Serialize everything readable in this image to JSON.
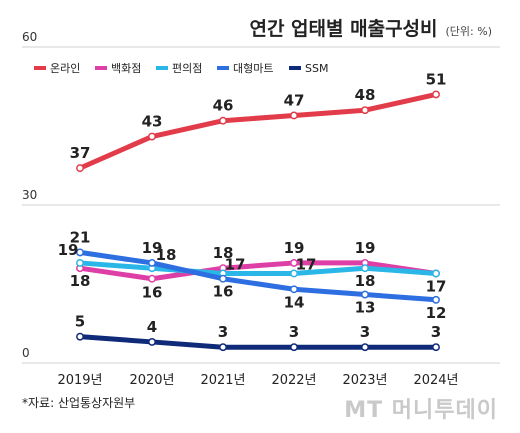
{
  "header": {
    "title": "연간 업태별 매출구성비",
    "unit": "(단위: %)"
  },
  "footer": {
    "source": "*자료: 산업통상자원부",
    "watermark": "MT 머니투데이"
  },
  "chart_data": {
    "type": "line",
    "title": "연간 업태별 매출구성비",
    "xlabel": "",
    "ylabel": "",
    "ylim": [
      0,
      60
    ],
    "yticks": [
      0,
      30,
      60
    ],
    "grid": true,
    "legend_position": "top-left",
    "categories": [
      "2019년",
      "2020년",
      "2021년",
      "2022년",
      "2023년",
      "2024년"
    ],
    "series": [
      {
        "name": "온라인",
        "color": "#e23c4a",
        "values": [
          37,
          43,
          46,
          47,
          48,
          51
        ]
      },
      {
        "name": "백화점",
        "color": "#de3fa6",
        "values": [
          18,
          16,
          18,
          19,
          19,
          17
        ]
      },
      {
        "name": "편의점",
        "color": "#2bb6e8",
        "values": [
          19,
          18,
          17,
          17,
          18,
          17
        ]
      },
      {
        "name": "대형마트",
        "color": "#2d6fe0",
        "values": [
          21,
          19,
          16,
          14,
          13,
          12
        ]
      },
      {
        "name": "SSM",
        "color": "#102a7a",
        "values": [
          5,
          4,
          3,
          3,
          3,
          3
        ]
      }
    ]
  }
}
